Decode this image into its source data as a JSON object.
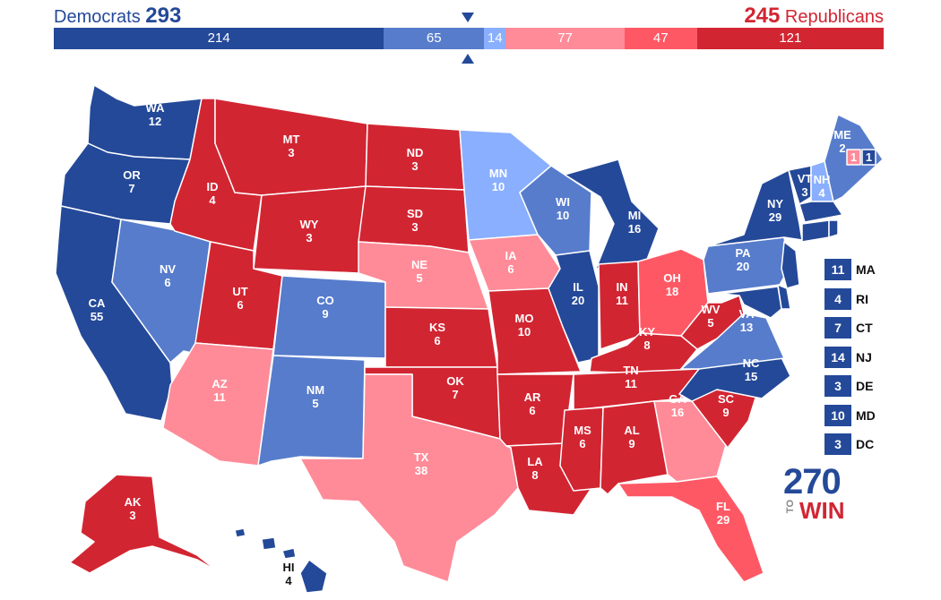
{
  "header": {
    "dem_label": "Democrats",
    "dem_total": "293",
    "rep_total": "245",
    "rep_label": "Republicans"
  },
  "colors": {
    "safe_dem": "#244999",
    "likely_dem": "#577ccc",
    "lean_dem": "#8aafff",
    "lean_rep": "#ff8b98",
    "likely_rep": "#ff5865",
    "safe_rep": "#d22532"
  },
  "bar_segments": [
    {
      "value": "214",
      "category": "safe_dem"
    },
    {
      "value": "65",
      "category": "likely_dem"
    },
    {
      "value": "14",
      "category": "lean_dem"
    },
    {
      "value": "77",
      "category": "lean_rep"
    },
    {
      "value": "47",
      "category": "likely_rep"
    },
    {
      "value": "121",
      "category": "safe_rep"
    }
  ],
  "states": {
    "WA": {
      "abbr": "WA",
      "ev": "12",
      "category": "safe_dem"
    },
    "OR": {
      "abbr": "OR",
      "ev": "7",
      "category": "safe_dem"
    },
    "CA": {
      "abbr": "CA",
      "ev": "55",
      "category": "safe_dem"
    },
    "NV": {
      "abbr": "NV",
      "ev": "6",
      "category": "likely_dem"
    },
    "ID": {
      "abbr": "ID",
      "ev": "4",
      "category": "safe_rep"
    },
    "MT": {
      "abbr": "MT",
      "ev": "3",
      "category": "safe_rep"
    },
    "WY": {
      "abbr": "WY",
      "ev": "3",
      "category": "safe_rep"
    },
    "UT": {
      "abbr": "UT",
      "ev": "6",
      "category": "safe_rep"
    },
    "AZ": {
      "abbr": "AZ",
      "ev": "11",
      "category": "lean_rep"
    },
    "CO": {
      "abbr": "CO",
      "ev": "9",
      "category": "likely_dem"
    },
    "NM": {
      "abbr": "NM",
      "ev": "5",
      "category": "likely_dem"
    },
    "ND": {
      "abbr": "ND",
      "ev": "3",
      "category": "safe_rep"
    },
    "SD": {
      "abbr": "SD",
      "ev": "3",
      "category": "safe_rep"
    },
    "NE": {
      "abbr": "NE",
      "ev": "5",
      "category": "lean_rep"
    },
    "KS": {
      "abbr": "KS",
      "ev": "6",
      "category": "safe_rep"
    },
    "OK": {
      "abbr": "OK",
      "ev": "7",
      "category": "safe_rep"
    },
    "TX": {
      "abbr": "TX",
      "ev": "38",
      "category": "lean_rep"
    },
    "MN": {
      "abbr": "MN",
      "ev": "10",
      "category": "lean_dem"
    },
    "IA": {
      "abbr": "IA",
      "ev": "6",
      "category": "lean_rep"
    },
    "MO": {
      "abbr": "MO",
      "ev": "10",
      "category": "safe_rep"
    },
    "AR": {
      "abbr": "AR",
      "ev": "6",
      "category": "safe_rep"
    },
    "LA": {
      "abbr": "LA",
      "ev": "8",
      "category": "safe_rep"
    },
    "WI": {
      "abbr": "WI",
      "ev": "10",
      "category": "likely_dem"
    },
    "IL": {
      "abbr": "IL",
      "ev": "20",
      "category": "safe_dem"
    },
    "MI": {
      "abbr": "MI",
      "ev": "16",
      "category": "safe_dem"
    },
    "IN": {
      "abbr": "IN",
      "ev": "11",
      "category": "safe_rep"
    },
    "OH": {
      "abbr": "OH",
      "ev": "18",
      "category": "likely_rep"
    },
    "KY": {
      "abbr": "KY",
      "ev": "8",
      "category": "safe_rep"
    },
    "TN": {
      "abbr": "TN",
      "ev": "11",
      "category": "safe_rep"
    },
    "MS": {
      "abbr": "MS",
      "ev": "6",
      "category": "safe_rep"
    },
    "AL": {
      "abbr": "AL",
      "ev": "9",
      "category": "safe_rep"
    },
    "GA": {
      "abbr": "GA",
      "ev": "16",
      "category": "lean_rep"
    },
    "FL": {
      "abbr": "FL",
      "ev": "29",
      "category": "likely_rep"
    },
    "SC": {
      "abbr": "SC",
      "ev": "9",
      "category": "safe_rep"
    },
    "NC": {
      "abbr": "NC",
      "ev": "15",
      "category": "safe_dem"
    },
    "VA": {
      "abbr": "VA",
      "ev": "13",
      "category": "likely_dem"
    },
    "WV": {
      "abbr": "WV",
      "ev": "5",
      "category": "safe_rep"
    },
    "PA": {
      "abbr": "PA",
      "ev": "20",
      "category": "likely_dem"
    },
    "NY": {
      "abbr": "NY",
      "ev": "29",
      "category": "safe_dem"
    },
    "VT": {
      "abbr": "VT",
      "ev": "3",
      "category": "safe_dem"
    },
    "NH": {
      "abbr": "NH",
      "ev": "4",
      "category": "lean_dem"
    },
    "ME": {
      "abbr": "ME",
      "ev": "2",
      "category": "likely_dem"
    },
    "AK": {
      "abbr": "AK",
      "ev": "3",
      "category": "safe_rep"
    },
    "HI": {
      "abbr": "HI",
      "ev": "4",
      "category": "safe_dem"
    }
  },
  "maine_districts": [
    {
      "ev": "1",
      "category": "lean_rep"
    },
    {
      "ev": "1",
      "category": "safe_dem"
    }
  ],
  "small_states": [
    {
      "abbr": "MA",
      "ev": "11",
      "category": "safe_dem"
    },
    {
      "abbr": "RI",
      "ev": "4",
      "category": "safe_dem"
    },
    {
      "abbr": "CT",
      "ev": "7",
      "category": "safe_dem"
    },
    {
      "abbr": "NJ",
      "ev": "14",
      "category": "safe_dem"
    },
    {
      "abbr": "DE",
      "ev": "3",
      "category": "safe_dem"
    },
    {
      "abbr": "MD",
      "ev": "10",
      "category": "safe_dem"
    },
    {
      "abbr": "DC",
      "ev": "3",
      "category": "safe_dem"
    }
  ],
  "logo": {
    "number": "270",
    "to": "TO",
    "win": "WIN"
  }
}
